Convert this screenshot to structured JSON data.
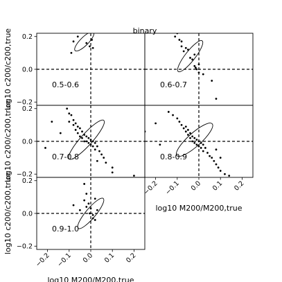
{
  "chart_data": [
    {
      "type": "scatter",
      "title": "binary",
      "ylabel": "log10 c200/c200,true",
      "xlabel": "log10 M200/M200,true",
      "xlim": [
        -0.25,
        0.25
      ],
      "ylim": [
        -0.22,
        0.22
      ],
      "grid": false,
      "xticks": [
        "−0.2",
        "−0.1",
        "0.0",
        "0.1",
        "0.2"
      ],
      "yticks": [
        "0.2",
        "0.0",
        "−0.2"
      ],
      "panels": [
        {
          "label": "0.5-0.6",
          "row": 0,
          "col": 0,
          "ellipse": {
            "cx": -0.03,
            "cy": 0.17,
            "rx": 0.06,
            "ry": 0.025,
            "angle": -45
          },
          "points": [
            [
              -0.08,
              0.17
            ],
            [
              -0.06,
              0.2
            ],
            [
              0.0,
              0.23
            ],
            [
              -0.02,
              0.16
            ],
            [
              -0.005,
              0.14
            ],
            [
              -0.09,
              0.1
            ],
            [
              0.005,
              0.18
            ],
            [
              0.01,
              0.13
            ]
          ]
        },
        {
          "label": "0.6-0.7",
          "row": 0,
          "col": 1,
          "ellipse": {
            "cx": -0.04,
            "cy": 0.08,
            "rx": 0.09,
            "ry": 0.03,
            "angle": -52
          },
          "points": [
            [
              -0.11,
              0.2
            ],
            [
              -0.09,
              0.18
            ],
            [
              -0.08,
              0.17
            ],
            [
              -0.08,
              0.14
            ],
            [
              -0.06,
              0.13
            ],
            [
              -0.07,
              0.11
            ],
            [
              -0.05,
              0.12
            ],
            [
              -0.04,
              0.07
            ],
            [
              -0.03,
              0.06
            ],
            [
              -0.02,
              0.09
            ],
            [
              -0.02,
              0.02
            ],
            [
              -0.015,
              0.01
            ],
            [
              -0.01,
              0.0
            ],
            [
              0.0,
              0.03
            ],
            [
              0.0,
              -0.02
            ],
            [
              0.02,
              -0.03
            ],
            [
              0.06,
              -0.07
            ],
            [
              -0.1,
              0.22
            ],
            [
              0.08,
              -0.18
            ]
          ]
        },
        {
          "label": "0.7-0.8",
          "row": 1,
          "col": 0,
          "ellipse": {
            "cx": -0.02,
            "cy": 0.01,
            "rx": 0.12,
            "ry": 0.035,
            "angle": -48
          },
          "points": [
            [
              -0.11,
              0.2
            ],
            [
              -0.1,
              0.17
            ],
            [
              -0.09,
              0.16
            ],
            [
              -0.1,
              0.12
            ],
            [
              -0.08,
              0.13
            ],
            [
              -0.07,
              0.11
            ],
            [
              -0.08,
              0.1
            ],
            [
              -0.06,
              0.09
            ],
            [
              -0.07,
              0.07
            ],
            [
              -0.05,
              0.08
            ],
            [
              -0.06,
              0.05
            ],
            [
              -0.04,
              0.06
            ],
            [
              -0.05,
              0.03
            ],
            [
              -0.03,
              0.04
            ],
            [
              -0.04,
              0.02
            ],
            [
              -0.02,
              0.03
            ],
            [
              -0.03,
              0.0
            ],
            [
              -0.01,
              0.02
            ],
            [
              -0.02,
              0.0
            ],
            [
              -0.01,
              -0.01
            ],
            [
              0.0,
              0.01
            ],
            [
              0.0,
              -0.02
            ],
            [
              0.01,
              0.0
            ],
            [
              0.01,
              -0.03
            ],
            [
              0.02,
              -0.01
            ],
            [
              0.02,
              -0.05
            ],
            [
              0.03,
              -0.03
            ],
            [
              0.04,
              -0.06
            ],
            [
              0.05,
              -0.08
            ],
            [
              0.06,
              -0.1
            ],
            [
              0.03,
              -0.12
            ],
            [
              0.07,
              -0.13
            ],
            [
              0.1,
              -0.16
            ],
            [
              0.1,
              -0.19
            ],
            [
              0.2,
              -0.21
            ],
            [
              -0.18,
              0.12
            ],
            [
              -0.21,
              -0.04
            ],
            [
              -0.14,
              0.05
            ]
          ]
        },
        {
          "label": "0.8-0.9",
          "row": 1,
          "col": 1,
          "ellipse": {
            "cx": -0.02,
            "cy": 0.01,
            "rx": 0.11,
            "ry": 0.04,
            "angle": -42
          },
          "points": [
            [
              -0.14,
              0.18
            ],
            [
              -0.12,
              0.16
            ],
            [
              -0.1,
              0.14
            ],
            [
              -0.09,
              0.12
            ],
            [
              -0.08,
              0.1
            ],
            [
              -0.07,
              0.08
            ],
            [
              -0.06,
              0.09
            ],
            [
              -0.06,
              0.06
            ],
            [
              -0.05,
              0.07
            ],
            [
              -0.05,
              0.04
            ],
            [
              -0.04,
              0.05
            ],
            [
              -0.04,
              0.02
            ],
            [
              -0.03,
              0.03
            ],
            [
              -0.03,
              0.0
            ],
            [
              -0.02,
              0.02
            ],
            [
              -0.02,
              -0.01
            ],
            [
              -0.01,
              0.01
            ],
            [
              -0.01,
              -0.02
            ],
            [
              0.0,
              0.0
            ],
            [
              0.0,
              -0.03
            ],
            [
              0.01,
              -0.01
            ],
            [
              0.01,
              -0.04
            ],
            [
              0.02,
              -0.02
            ],
            [
              0.02,
              -0.06
            ],
            [
              0.03,
              -0.04
            ],
            [
              0.04,
              -0.07
            ],
            [
              0.05,
              -0.09
            ],
            [
              0.06,
              -0.1
            ],
            [
              0.07,
              -0.12
            ],
            [
              0.08,
              -0.14
            ],
            [
              0.09,
              -0.16
            ],
            [
              0.1,
              -0.18
            ],
            [
              0.12,
              -0.2
            ],
            [
              0.14,
              -0.21
            ],
            [
              -0.2,
              0.11
            ],
            [
              -0.25,
              0.06
            ],
            [
              -0.18,
              -0.02
            ],
            [
              0.08,
              -0.05
            ],
            [
              0.1,
              -0.1
            ]
          ]
        },
        {
          "label": "0.9-1.0",
          "row": 2,
          "col": 0,
          "ellipse": {
            "cx": 0.0,
            "cy": 0.0,
            "rx": 0.09,
            "ry": 0.03,
            "angle": -50
          },
          "points": [
            [
              -0.03,
              0.18
            ],
            [
              -0.02,
              0.12
            ],
            [
              -0.03,
              0.08
            ],
            [
              -0.01,
              0.06
            ],
            [
              -0.02,
              0.04
            ],
            [
              0.0,
              0.03
            ],
            [
              -0.005,
              0.0
            ],
            [
              0.01,
              -0.01
            ],
            [
              0.01,
              -0.03
            ],
            [
              0.02,
              -0.04
            ],
            [
              0.03,
              0.02
            ],
            [
              -0.08,
              0.05
            ],
            [
              -0.05,
              0.02
            ],
            [
              0.02,
              0.09
            ]
          ]
        }
      ]
    }
  ]
}
